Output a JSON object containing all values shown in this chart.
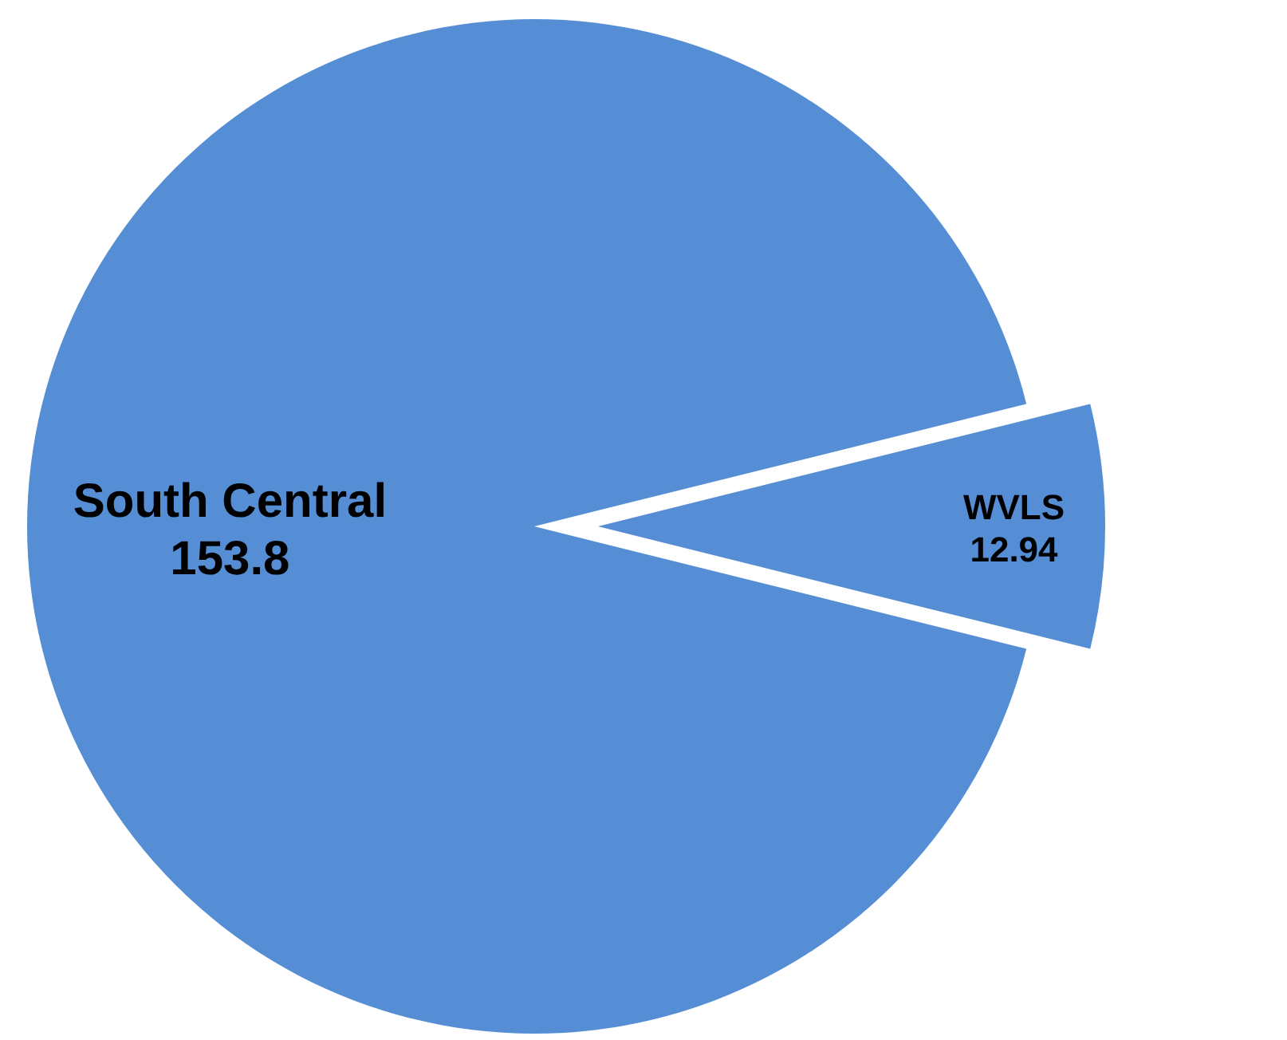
{
  "chart_data": {
    "type": "pie",
    "categories": [
      "South Central",
      "WVLS"
    ],
    "values": [
      153.8,
      12.94
    ],
    "colors": [
      "#558ed5",
      "#558ed5"
    ],
    "data_labels": true
  }
}
